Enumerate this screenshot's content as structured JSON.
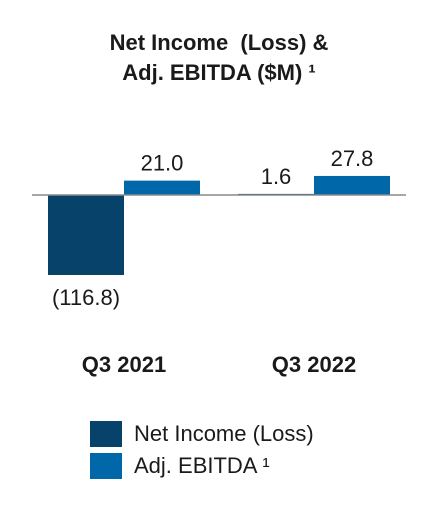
{
  "chart_data": {
    "type": "bar",
    "title_lines": [
      "Net Income  (Loss) &",
      "Adj. EBITDA ($M) ¹"
    ],
    "categories": [
      "Q3 2021",
      "Q3 2022"
    ],
    "series": [
      {
        "name": "Net Income (Loss)",
        "color": "#06426a",
        "values": [
          -116.8,
          1.6
        ],
        "labels": [
          "(116.8)",
          "1.6"
        ]
      },
      {
        "name": "Adj. EBITDA ¹",
        "color": "#0068a8",
        "values": [
          21.0,
          27.8
        ],
        "labels": [
          "21.0",
          "27.8"
        ]
      }
    ],
    "ylim": [
      -116.8,
      27.8
    ],
    "grid": false,
    "legend_position": "bottom"
  }
}
